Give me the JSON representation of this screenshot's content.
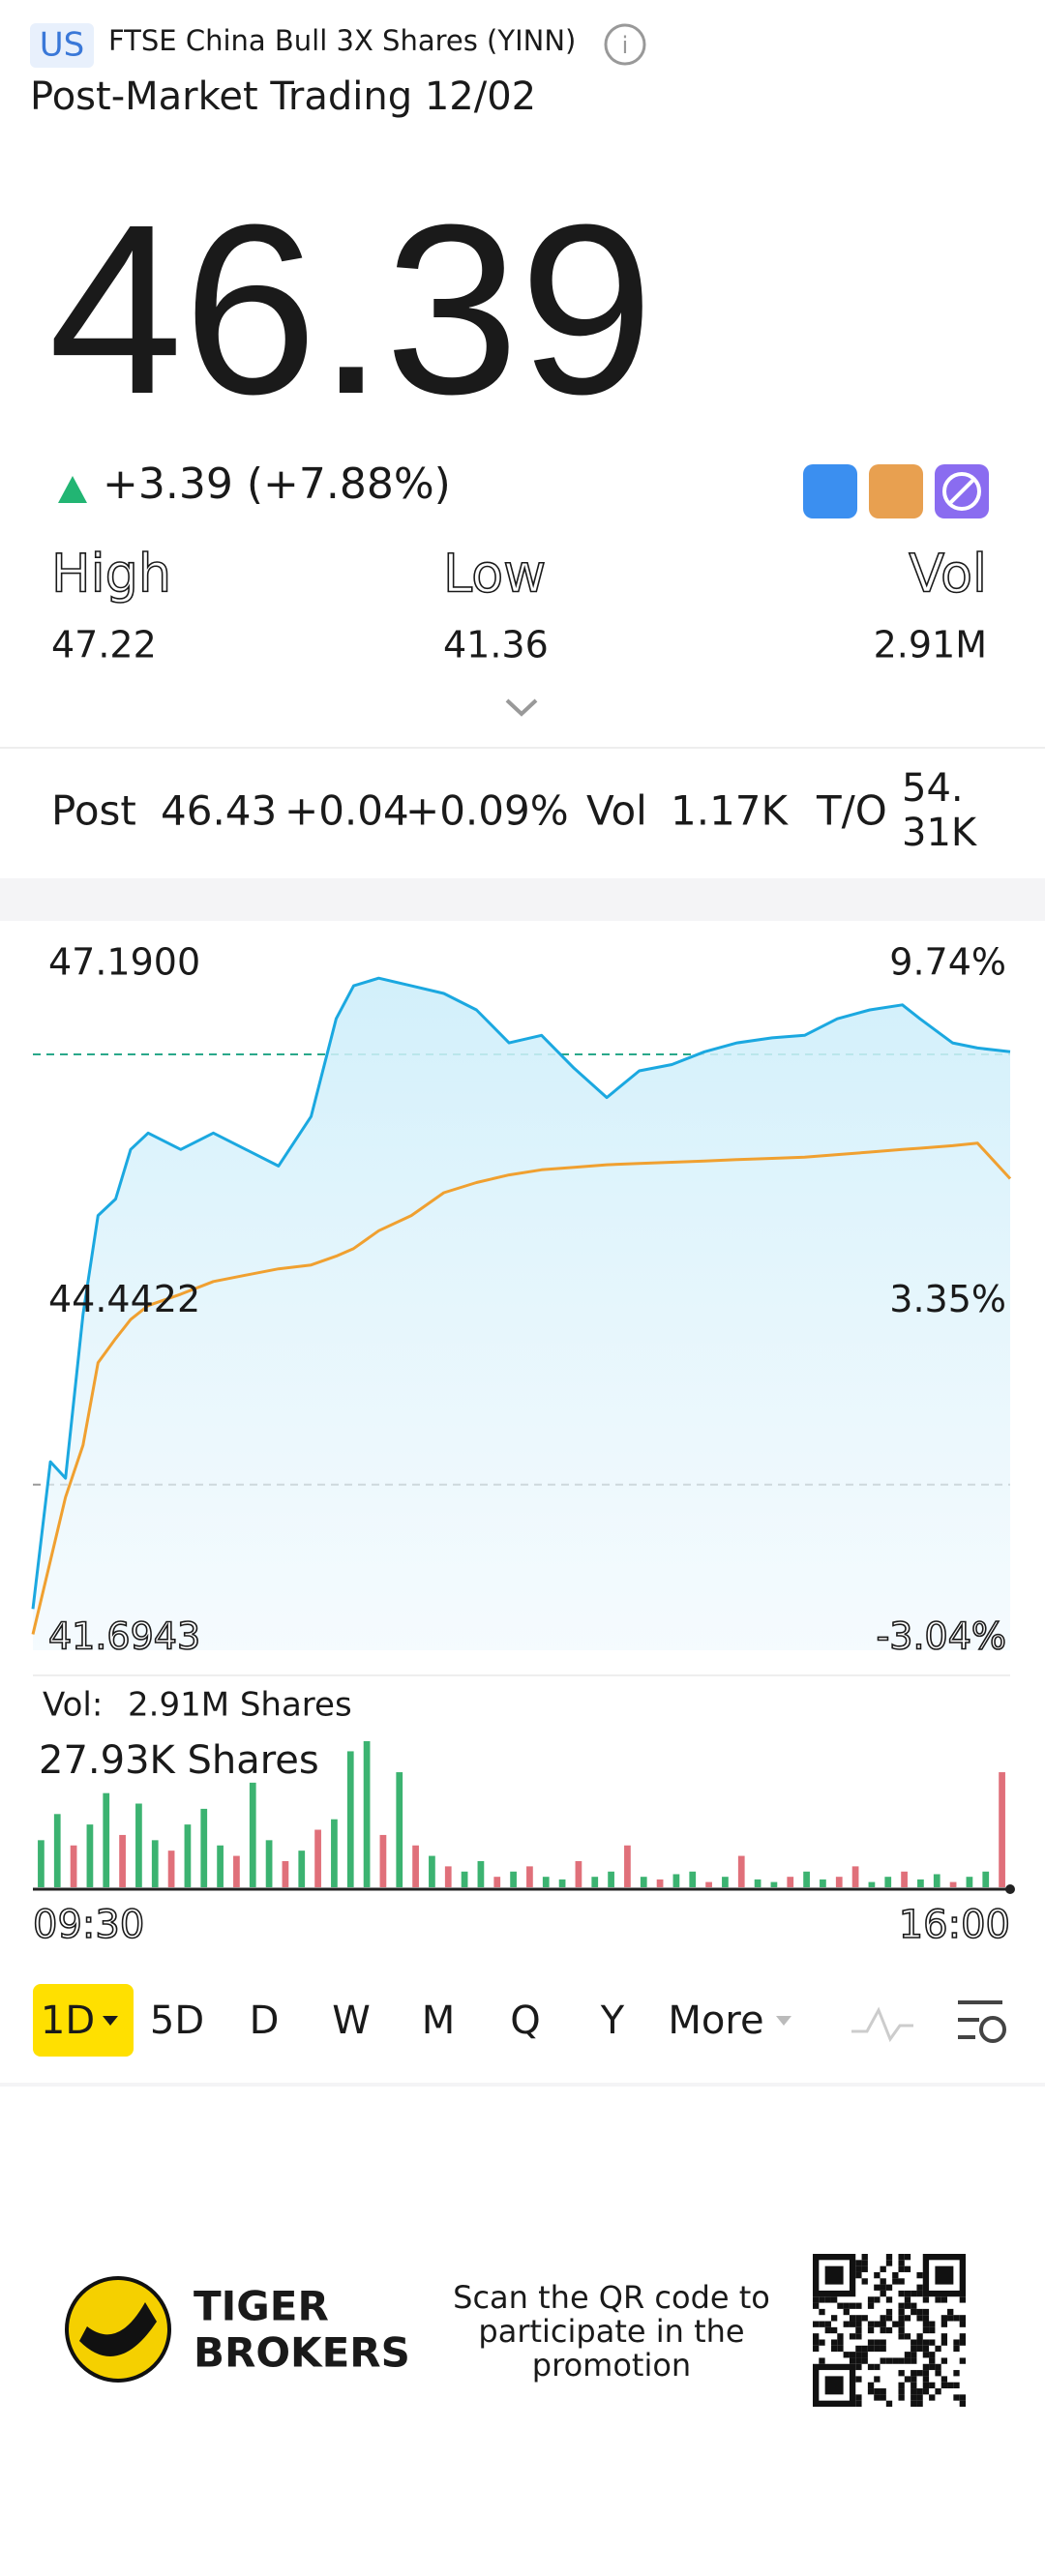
{
  "header": {
    "market": "US",
    "name": "FTSE China Bull 3X Shares (YINN)",
    "status": "Post-Market Trading 12/02"
  },
  "quote": {
    "price": "46.39",
    "change": "+3.39 (+7.88%)"
  },
  "stats": [
    {
      "label": "High",
      "value": "47.22"
    },
    {
      "label": "Low",
      "value": "41.36"
    },
    {
      "label": "Vol",
      "value": "2.91M"
    }
  ],
  "post": {
    "label": "Post",
    "price": "46.43",
    "change": "+0.04",
    "pct": "+0.09%",
    "vol_label": "Vol",
    "vol": "1.17K",
    "to_label": "T/O",
    "to": "54.31K"
  },
  "chart_data": {
    "type": "line",
    "xlim": [
      0,
      390
    ],
    "xticks": [
      {
        "value": 0,
        "label": "09:30"
      },
      {
        "value": 390,
        "label": "16:00"
      }
    ],
    "ylim": [
      41.6943,
      47.19
    ],
    "yticks": [
      {
        "value": 47.19,
        "label": "47.1900"
      },
      {
        "value": 44.4422,
        "label": "44.4422"
      },
      {
        "value": 41.6943,
        "label": "41.6943"
      }
    ],
    "y2lim": [
      -3.04,
      9.74
    ],
    "y2ticks": [
      {
        "value": 9.74,
        "label": "9.74%"
      },
      {
        "value": 3.35,
        "label": "3.35%"
      },
      {
        "value": -3.04,
        "label": "-3.04%"
      }
    ],
    "reference_lines": [
      {
        "value": 46.39,
        "color": "#2aa88a"
      },
      {
        "value": 43.0,
        "color": "#9a9a9a"
      }
    ],
    "x": [
      0,
      7,
      13,
      20,
      26,
      33,
      39,
      46,
      59,
      72,
      85,
      98,
      111,
      121,
      128,
      138,
      151,
      164,
      177,
      190,
      203,
      216,
      229,
      242,
      255,
      268,
      281,
      295,
      308,
      321,
      334,
      347,
      354,
      367,
      377,
      390
    ],
    "series": [
      {
        "color": "#1ba8e0",
        "values": [
          42.02,
          43.18,
          43.05,
          44.34,
          45.12,
          45.25,
          45.64,
          45.77,
          45.64,
          45.77,
          45.64,
          45.51,
          45.9,
          46.67,
          46.93,
          46.99,
          46.93,
          46.87,
          46.74,
          46.48,
          46.54,
          46.28,
          46.05,
          46.26,
          46.31,
          46.41,
          46.48,
          46.52,
          46.54,
          46.67,
          46.74,
          46.78,
          46.67,
          46.48,
          46.44,
          46.41
        ]
      },
      {
        "color": "#f0a030",
        "values": [
          41.82,
          42.4,
          42.9,
          43.31,
          43.96,
          44.15,
          44.3,
          44.41,
          44.5,
          44.6,
          44.65,
          44.7,
          44.73,
          44.8,
          44.86,
          45.0,
          45.12,
          45.3,
          45.38,
          45.44,
          45.48,
          45.5,
          45.52,
          45.53,
          45.54,
          45.55,
          45.56,
          45.57,
          45.58,
          45.6,
          45.62,
          45.64,
          45.65,
          45.67,
          45.69,
          45.41
        ]
      }
    ],
    "volume": {
      "total_label": "Vol:",
      "total": "2.91M Shares",
      "max_label": "27.93K Shares",
      "ylim": [
        0,
        27930
      ],
      "up_color": "#3cb371",
      "down_color": "#e0707a",
      "values": [
        9000,
        14000,
        8000,
        12000,
        18000,
        10000,
        16000,
        9000,
        7000,
        12000,
        15000,
        8000,
        6000,
        20000,
        9000,
        5000,
        7000,
        11000,
        13000,
        26000,
        27930,
        10000,
        22000,
        8000,
        6000,
        4000,
        3000,
        5000,
        2000,
        3000,
        4000,
        2000,
        1500,
        5000,
        2000,
        3000,
        8000,
        2000,
        1500,
        2500,
        3000,
        1000,
        2000,
        6000,
        1500,
        1000,
        2000,
        3000,
        1500,
        2000,
        4000,
        1000,
        2000,
        3000,
        1500,
        2500,
        1000,
        2000,
        3000,
        22000
      ],
      "up": [
        true,
        true,
        false,
        true,
        true,
        false,
        true,
        true,
        false,
        true,
        true,
        true,
        false,
        true,
        true,
        false,
        true,
        false,
        true,
        true,
        true,
        false,
        true,
        false,
        true,
        false,
        true,
        true,
        false,
        true,
        false,
        true,
        true,
        false,
        true,
        true,
        false,
        true,
        false,
        true,
        true,
        false,
        true,
        false,
        true,
        true,
        false,
        true,
        true,
        false,
        false,
        true,
        true,
        false,
        true,
        true,
        false,
        true,
        true,
        false
      ]
    }
  },
  "tabs": [
    "1D",
    "5D",
    "D",
    "W",
    "M",
    "Q",
    "Y",
    "More"
  ],
  "footer": {
    "brand_1": "TIGER",
    "brand_2": "BROKERS",
    "promo": [
      "Scan the QR code to",
      "participate in the",
      "promotion"
    ]
  }
}
